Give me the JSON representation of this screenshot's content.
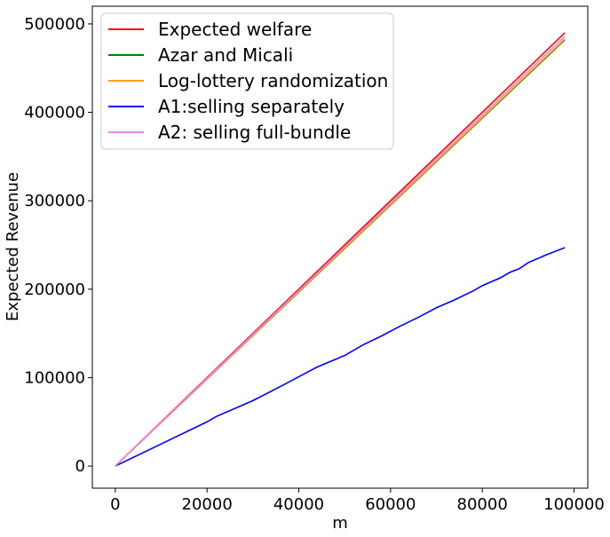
{
  "chart_data": {
    "type": "line",
    "title": "",
    "xlabel": "m",
    "ylabel": "Expected Revenue",
    "xlim": [
      -5000,
      103000
    ],
    "ylim": [
      -25000,
      520000
    ],
    "xticks": [
      0,
      20000,
      40000,
      60000,
      80000,
      100000
    ],
    "yticks": [
      0,
      100000,
      200000,
      300000,
      400000,
      500000
    ],
    "xtick_labels": [
      "0",
      "20000",
      "40000",
      "60000",
      "80000",
      "100000"
    ],
    "ytick_labels": [
      "0",
      "100000",
      "200000",
      "300000",
      "400000",
      "500000"
    ],
    "grid": false,
    "legend_position": "top-left",
    "series": [
      {
        "name": "Expected welfare",
        "color": "#ff0000",
        "x": [
          0,
          98000
        ],
        "y": [
          0,
          490000
        ]
      },
      {
        "name": "Azar and Micali",
        "color": "#008000",
        "x": [
          0,
          98000
        ],
        "y": [
          0,
          482000
        ]
      },
      {
        "name": "Log-lottery randomization",
        "color": "#ffa500",
        "x": [
          0,
          98000
        ],
        "y": [
          0,
          483000
        ]
      },
      {
        "name": "A1:selling separately",
        "color": "#0000ff",
        "x": [
          0,
          10000,
          20000,
          22000,
          30000,
          36000,
          40000,
          44000,
          50000,
          54000,
          58000,
          62000,
          66000,
          70000,
          74000,
          78000,
          80000,
          84000,
          86000,
          88000,
          90000,
          94000,
          98000
        ],
        "y": [
          0,
          25000,
          50000,
          56000,
          74000,
          90000,
          101000,
          112000,
          125000,
          137000,
          147000,
          158000,
          168000,
          179000,
          188000,
          198000,
          204000,
          213000,
          219000,
          223000,
          230000,
          239000,
          247000
        ]
      },
      {
        "name": "A2: selling full-bundle",
        "color": "#ee82ee",
        "x": [
          0,
          98000
        ],
        "y": [
          0,
          486000
        ]
      }
    ]
  }
}
